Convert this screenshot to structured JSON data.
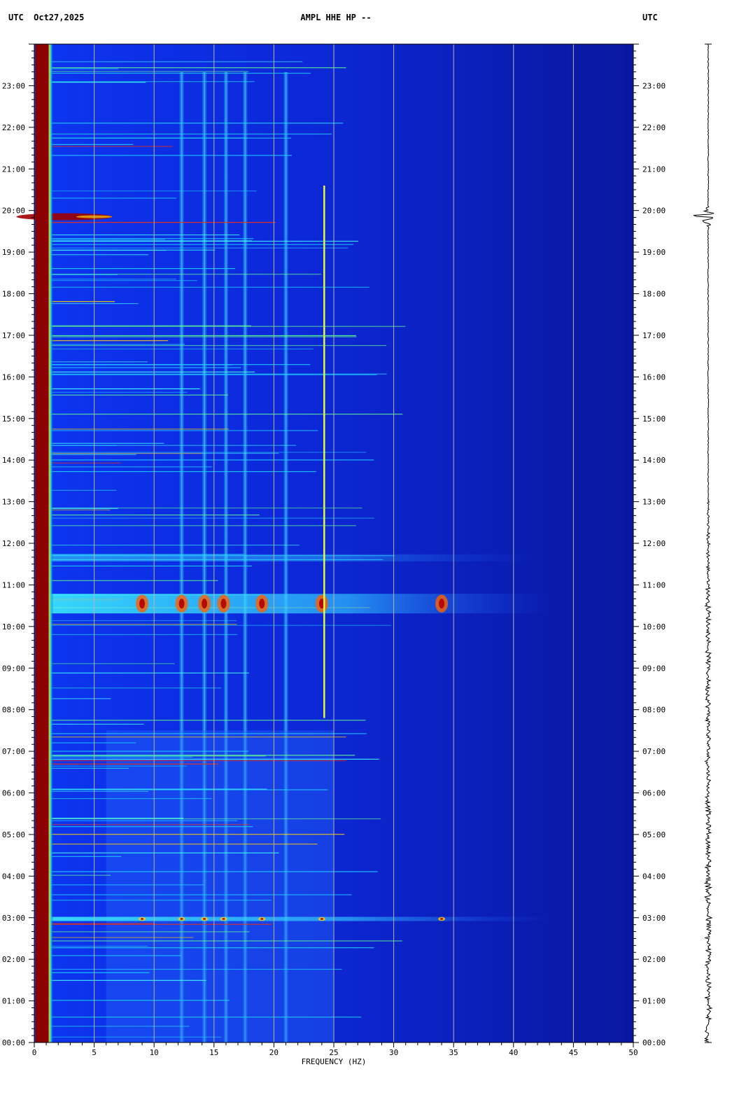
{
  "header": {
    "left": "UTC  Oct27,2025",
    "center": "AMPL HHE HP --",
    "right": "UTC"
  },
  "colors": {
    "background": "#0a14b4",
    "dark_band": "#8b0000",
    "grid": "#b4b4b4",
    "trace": "#000000"
  },
  "chart_data": {
    "type": "heatmap",
    "title": "AMPL HHE HP --",
    "date": "Oct27,2025",
    "timezone_label": "UTC",
    "xlabel": "FREQUENCY (HZ)",
    "xlim": [
      0,
      50
    ],
    "x_ticks": [
      0,
      5,
      10,
      15,
      20,
      25,
      30,
      35,
      40,
      45,
      50
    ],
    "y_unit": "hours UTC",
    "ylim": [
      0,
      24
    ],
    "y_ticks": [
      "00:00",
      "01:00",
      "02:00",
      "03:00",
      "04:00",
      "05:00",
      "06:00",
      "07:00",
      "08:00",
      "09:00",
      "10:00",
      "11:00",
      "12:00",
      "13:00",
      "14:00",
      "15:00",
      "16:00",
      "17:00",
      "18:00",
      "19:00",
      "20:00",
      "21:00",
      "22:00",
      "23:00"
    ],
    "vertical_grid_hz": [
      5,
      10,
      15,
      20,
      25,
      30,
      35,
      40,
      45
    ],
    "features": {
      "low_freq_band_hz": [
        0.2,
        1.2
      ],
      "persistent_lines_hz": [
        12.3,
        14.2,
        16.0,
        17.6,
        21.0
      ],
      "narrow_line": {
        "freq_hz": 24.2,
        "time_start": 7.8,
        "time_end": 20.6
      },
      "broadband_events": [
        {
          "time": 10.55,
          "freq_max_hz": 43,
          "intensity": "high"
        },
        {
          "time": 2.97,
          "freq_max_hz": 43,
          "intensity": "medium"
        },
        {
          "time": 11.65,
          "freq_max_hz": 42,
          "intensity": "low"
        }
      ],
      "earthquake_time": 19.85
    },
    "trace": {
      "label": "waveform",
      "event_time": 19.85
    }
  }
}
